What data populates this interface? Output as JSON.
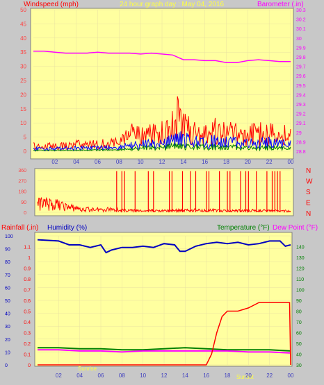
{
  "header": {
    "title": "24 hour graph day : May 04, 2016",
    "left_label": "Windspeed (mph)",
    "right_label": "Barometer (.in)"
  },
  "colors": {
    "plot_bg": "#ffffa0",
    "window_bg": "#c8c8c8",
    "wind": "#ff0000",
    "gust_mid": "#0000ff",
    "gust_low": "#008000",
    "barometer": "#ff00ff",
    "humidity": "#0000c0",
    "temperature": "#008000",
    "dewpoint": "#ff00ff",
    "rain": "#ff0000",
    "title": "#ffff40"
  },
  "direction_labels": [
    "N",
    "W",
    "S",
    "E",
    "N"
  ],
  "bottom": {
    "rain_label": "Rainfall (.in)",
    "humidity_label": "Humidity (%)",
    "temp_label": "Temperature (°F)",
    "dew_label": "Dew Point (°F)",
    "sunrise_label": "Sunrise",
    "sunset_label": "Sunset"
  },
  "chart_data": [
    {
      "type": "line",
      "id": "wind-baro",
      "x_ticks": [
        "02",
        "04",
        "06",
        "08",
        "10",
        "12",
        "14",
        "16",
        "18",
        "20",
        "22",
        "00"
      ],
      "ylim": [
        0,
        50
      ],
      "y_ticks": [
        0,
        5,
        10,
        15,
        20,
        25,
        30,
        35,
        40,
        45,
        50
      ],
      "y2lim": [
        28.8,
        30.3
      ],
      "y2_ticks": [
        "28.8",
        "28.9",
        "29",
        "29.1",
        "29.2",
        "29.3",
        "29.4",
        "29.5",
        "29.6",
        "29.7",
        "29.8",
        "29.9",
        "30",
        "30.1",
        "30.2",
        "30.3"
      ],
      "series": [
        {
          "role": "gust",
          "hours": [
            0,
            2,
            4,
            6,
            8,
            9,
            10,
            11,
            12,
            13,
            13.5,
            14,
            15,
            16,
            17,
            18,
            19,
            20,
            21,
            22,
            23,
            24
          ],
          "values": [
            3,
            3,
            4,
            4,
            5,
            10,
            9,
            10,
            12,
            15,
            20,
            14,
            11,
            10,
            12,
            11,
            10,
            9,
            11,
            10,
            10,
            10
          ]
        },
        {
          "role": "wind_avg",
          "hours": [
            0,
            2,
            4,
            6,
            8,
            9,
            10,
            11,
            12,
            13,
            14,
            15,
            16,
            17,
            18,
            19,
            20,
            21,
            22,
            23,
            24
          ],
          "values": [
            1.5,
            1.5,
            2,
            2,
            2,
            4,
            4,
            5,
            5,
            6,
            8,
            6,
            5,
            6,
            6,
            5,
            5,
            5,
            5,
            5,
            5
          ]
        },
        {
          "role": "wind_low",
          "hours": [
            0,
            4,
            8,
            10,
            12,
            14,
            16,
            18,
            20,
            22,
            24
          ],
          "values": [
            0.5,
            0.5,
            0.8,
            2,
            2.5,
            3,
            2.5,
            2.5,
            2,
            2,
            2
          ]
        },
        {
          "role": "barometer",
          "hours": [
            0,
            1,
            2,
            3,
            4,
            5,
            6,
            7,
            8,
            9,
            10,
            11,
            12,
            13,
            14,
            15,
            16,
            17,
            18,
            19,
            20,
            21,
            22,
            23,
            24
          ],
          "values": [
            29.86,
            29.86,
            29.85,
            29.84,
            29.84,
            29.84,
            29.85,
            29.84,
            29.84,
            29.84,
            29.83,
            29.84,
            29.83,
            29.82,
            29.77,
            29.77,
            29.76,
            29.76,
            29.74,
            29.74,
            29.76,
            29.77,
            29.76,
            29.75,
            29.75
          ]
        }
      ]
    },
    {
      "type": "line",
      "id": "direction",
      "x_ticks": [
        "02",
        "04",
        "06",
        "08",
        "10",
        "12",
        "14",
        "16",
        "18",
        "20",
        "22",
        "00"
      ],
      "ylim": [
        0,
        360
      ],
      "y_ticks": [
        0,
        90,
        180,
        270,
        360
      ],
      "series": [
        {
          "role": "direction",
          "hours": [
            0,
            1,
            2,
            3,
            4,
            5,
            6,
            7,
            8,
            9,
            10,
            11,
            12,
            13,
            14,
            15,
            16,
            17,
            18,
            19,
            20,
            21,
            22,
            23,
            24
          ],
          "values": [
            130,
            120,
            110,
            70,
            60,
            50,
            40,
            50,
            30,
            25,
            20,
            25,
            20,
            30,
            30,
            35,
            25,
            30,
            20,
            25,
            25,
            30,
            25,
            20,
            20
          ]
        }
      ]
    },
    {
      "type": "line",
      "id": "rain-hum-temp",
      "x_ticks": [
        "02",
        "04",
        "06",
        "08",
        "10",
        "12",
        "14",
        "16",
        "18",
        "20",
        "22",
        "00"
      ],
      "ylim": [
        0,
        100
      ],
      "y_ticks": [
        0,
        10,
        20,
        30,
        40,
        50,
        60,
        70,
        80,
        90,
        100
      ],
      "y2lim": [
        0,
        1.2
      ],
      "y2_ticks": [
        "0",
        "0.1",
        "0.2",
        "0.3",
        "0.4",
        "0.5",
        "0.6",
        "0.7",
        "0.8",
        "0.9",
        "1",
        "1.1"
      ],
      "y3lim": [
        30,
        150
      ],
      "y3_ticks": [
        "30",
        "40",
        "50",
        "60",
        "70",
        "80",
        "90",
        "100",
        "110",
        "120",
        "130",
        "140"
      ],
      "series": [
        {
          "name": "Humidity (%)",
          "hours": [
            0,
            2,
            3,
            4,
            5,
            6,
            6.5,
            7,
            8,
            9,
            10,
            11,
            12,
            13,
            13.5,
            14,
            15,
            16,
            17,
            18,
            19,
            20,
            21,
            22,
            23,
            23.5,
            24
          ],
          "values": [
            97,
            96,
            93,
            93,
            91,
            93,
            87,
            89,
            91,
            91,
            92,
            91,
            94,
            93,
            88,
            88,
            92,
            94,
            95,
            94,
            95,
            93,
            94,
            96,
            96,
            92,
            93
          ]
        },
        {
          "name": "Temperature (°F)",
          "hours": [
            0,
            2,
            4,
            6,
            8,
            10,
            12,
            14,
            16,
            18,
            20,
            22,
            24
          ],
          "values": [
            46,
            46,
            45,
            45,
            44,
            44,
            45,
            46,
            45,
            44,
            44,
            44,
            43
          ]
        },
        {
          "name": "Dew Point (°F)",
          "hours": [
            0,
            2,
            4,
            6,
            8,
            10,
            12,
            14,
            16,
            18,
            20,
            22,
            24
          ],
          "values": [
            44,
            44,
            43,
            43,
            42,
            43,
            43,
            43,
            43,
            43,
            42,
            42,
            41
          ]
        },
        {
          "name": "Rainfall (.in)",
          "hours": [
            0,
            16,
            16.5,
            17,
            17.5,
            18,
            19,
            20,
            21,
            22,
            23.9,
            24
          ],
          "values": [
            0,
            0,
            0.1,
            0.3,
            0.45,
            0.5,
            0.5,
            0.53,
            0.58,
            0.58,
            0.58,
            0
          ]
        }
      ]
    }
  ]
}
